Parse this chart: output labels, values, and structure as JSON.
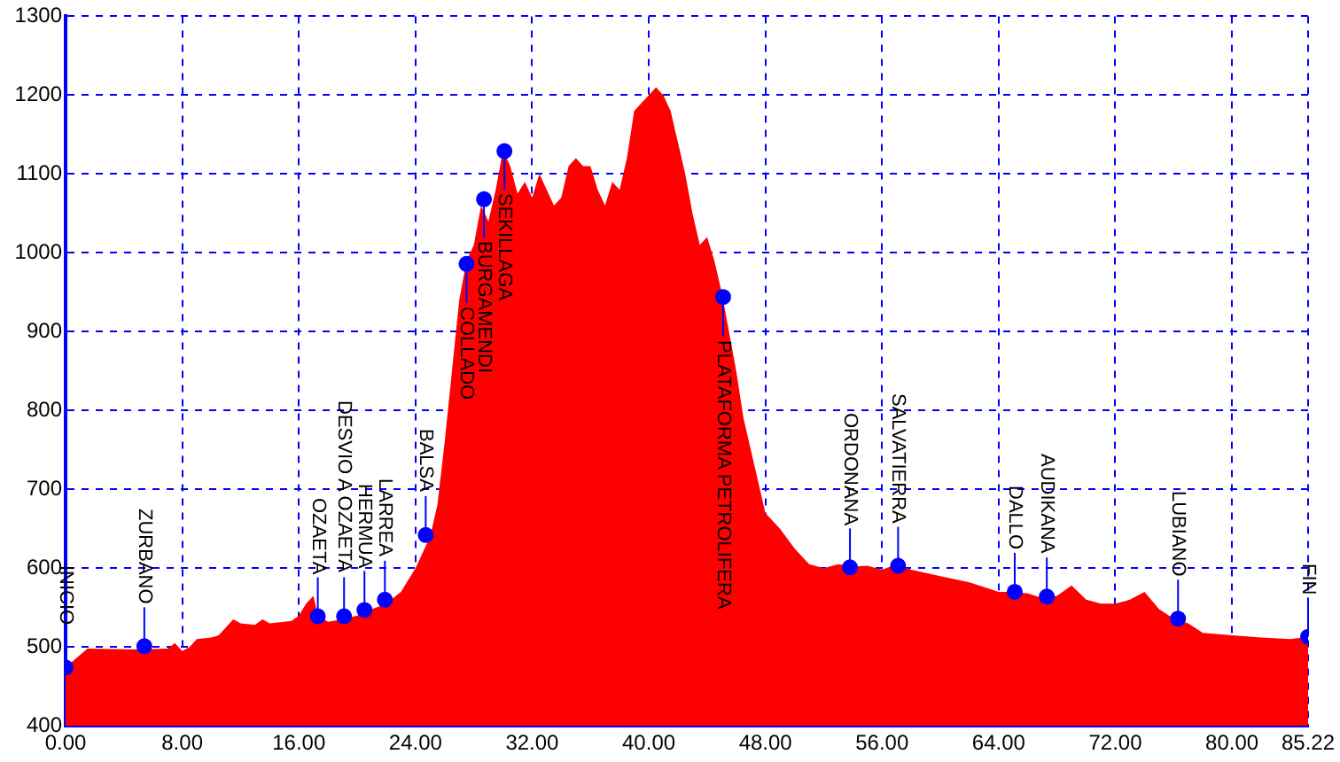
{
  "chart_data": {
    "type": "area",
    "xlim": [
      0,
      85.22
    ],
    "ylim": [
      400,
      1300
    ],
    "xticks": [
      {
        "value": 0,
        "label": "0.00"
      },
      {
        "value": 8,
        "label": "8.00"
      },
      {
        "value": 16,
        "label": "16.00"
      },
      {
        "value": 24,
        "label": "24.00"
      },
      {
        "value": 32,
        "label": "32.00"
      },
      {
        "value": 40,
        "label": "40.00"
      },
      {
        "value": 48,
        "label": "48.00"
      },
      {
        "value": 56,
        "label": "56.00"
      },
      {
        "value": 64,
        "label": "64.00"
      },
      {
        "value": 72,
        "label": "72.00"
      },
      {
        "value": 80,
        "label": "80.00"
      },
      {
        "value": 85.22,
        "label": "85.22"
      }
    ],
    "yticks": [
      400,
      500,
      600,
      700,
      800,
      900,
      1000,
      1100,
      1200,
      1300
    ],
    "grid": true,
    "legend": false,
    "series": [
      {
        "color": "#ff0000",
        "x": [
          0,
          1,
          1.5,
          5,
          7,
          7.5,
          8,
          8.5,
          9,
          10,
          10.5,
          11,
          11.5,
          12,
          13,
          13.5,
          14,
          15,
          15.5,
          16,
          16.5,
          17,
          17.3,
          18,
          19,
          20,
          21,
          22,
          23,
          24,
          24.5,
          25,
          25.5,
          26,
          26.5,
          27,
          27.5,
          28,
          28.5,
          29,
          29.5,
          30,
          30.5,
          31,
          31.5,
          32,
          32.5,
          33,
          33.5,
          34,
          34.5,
          35,
          35.5,
          36,
          36.5,
          37,
          37.5,
          38,
          38.5,
          39,
          39.5,
          40,
          40.5,
          41,
          41.5,
          42,
          42.5,
          43,
          43.5,
          44,
          44.5,
          45,
          45.5,
          46,
          46.5,
          47,
          47.5,
          48,
          49,
          50,
          51,
          52,
          53,
          54,
          55,
          56,
          57,
          58,
          60,
          62,
          64,
          65,
          66,
          67,
          68,
          69,
          70,
          71,
          72,
          73,
          74,
          75,
          76,
          77,
          78,
          80,
          82,
          84,
          85.22
        ],
        "values": [
          474,
          490,
          498,
          497,
          498,
          505,
          495,
          500,
          510,
          512,
          515,
          525,
          535,
          530,
          528,
          535,
          530,
          532,
          533,
          540,
          555,
          565,
          540,
          532,
          535,
          540,
          548,
          555,
          570,
          600,
          620,
          640,
          680,
          760,
          850,
          940,
          990,
          1010,
          1060,
          1040,
          1080,
          1130,
          1110,
          1075,
          1090,
          1070,
          1100,
          1080,
          1060,
          1070,
          1110,
          1120,
          1110,
          1110,
          1080,
          1060,
          1090,
          1080,
          1120,
          1180,
          1190,
          1200,
          1210,
          1200,
          1180,
          1140,
          1100,
          1050,
          1010,
          1020,
          990,
          950,
          900,
          850,
          790,
          750,
          710,
          670,
          650,
          625,
          605,
          600,
          605,
          602,
          603,
          598,
          605,
          598,
          590,
          582,
          570,
          570,
          568,
          562,
          565,
          578,
          560,
          555,
          555,
          560,
          570,
          548,
          536,
          530,
          518,
          515,
          512,
          510,
          513
        ]
      },
      {
        "type": "scatter",
        "color": "#0000ff",
        "marker": "circle",
        "x": [
          0,
          5.4,
          17.3,
          19.1,
          20.5,
          21.9,
          24.7,
          27.5,
          28.7,
          30.1,
          45.1,
          53.8,
          57.1,
          65.1,
          67.3,
          76.3,
          85.22
        ],
        "values": [
          474,
          501,
          539,
          539,
          547,
          560,
          642,
          986,
          1068,
          1129,
          944,
          601,
          603,
          570,
          564,
          536,
          513
        ]
      }
    ],
    "annotations": [
      {
        "text": "INICIO",
        "x": 0,
        "y": 474
      },
      {
        "text": "ZURBANO",
        "x": 5.4,
        "y": 501
      },
      {
        "text": "OZAETA",
        "x": 17.3,
        "y": 539
      },
      {
        "text": "DESVIO A OZAETA",
        "x": 19.1,
        "y": 539
      },
      {
        "text": "HERMUA",
        "x": 20.5,
        "y": 547
      },
      {
        "text": "LARREA",
        "x": 21.9,
        "y": 560
      },
      {
        "text": "BALSA",
        "x": 24.7,
        "y": 642
      },
      {
        "text": "COLLADO",
        "x": 27.5,
        "y": 986
      },
      {
        "text": "BURGAMENDI",
        "x": 28.7,
        "y": 1068
      },
      {
        "text": "SEKILLAGA",
        "x": 30.1,
        "y": 1129
      },
      {
        "text": "PLATAFORMA PETROLIFERA",
        "x": 45.1,
        "y": 944
      },
      {
        "text": "ORDONANA",
        "x": 53.8,
        "y": 601
      },
      {
        "text": "SALVATIERRA",
        "x": 57.1,
        "y": 603
      },
      {
        "text": "DALLO",
        "x": 65.1,
        "y": 570
      },
      {
        "text": "AUDIKANA",
        "x": 67.3,
        "y": 564
      },
      {
        "text": "LUBIANO",
        "x": 76.3,
        "y": 536
      },
      {
        "text": "FIN",
        "x": 85.22,
        "y": 513
      }
    ]
  }
}
